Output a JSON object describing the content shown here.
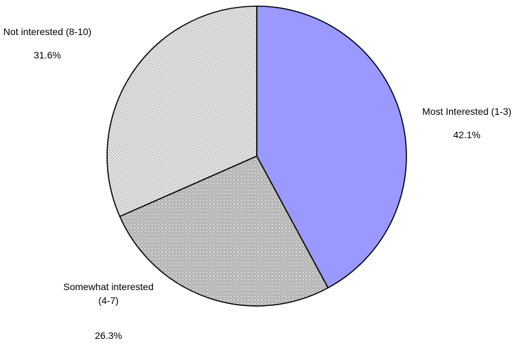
{
  "chart_data": {
    "type": "pie",
    "slices": [
      {
        "label_lines": [
          "Most Interested (1-3)"
        ],
        "value": 42.1,
        "value_label": "42.1%",
        "color": "#9999ff",
        "pattern": "solid"
      },
      {
        "label_lines": [
          "Somewhat interested",
          "(4-7)"
        ],
        "value": 26.3,
        "value_label": "26.3%",
        "color": "#c0c0c0",
        "pattern": "dots"
      },
      {
        "label_lines": [
          "Not interested (8-10)"
        ],
        "value": 31.6,
        "value_label": "31.6%",
        "color": "#ebebeb",
        "pattern": "crosshatch"
      }
    ],
    "title": "",
    "legend": "none",
    "outline_color": "#000000"
  }
}
